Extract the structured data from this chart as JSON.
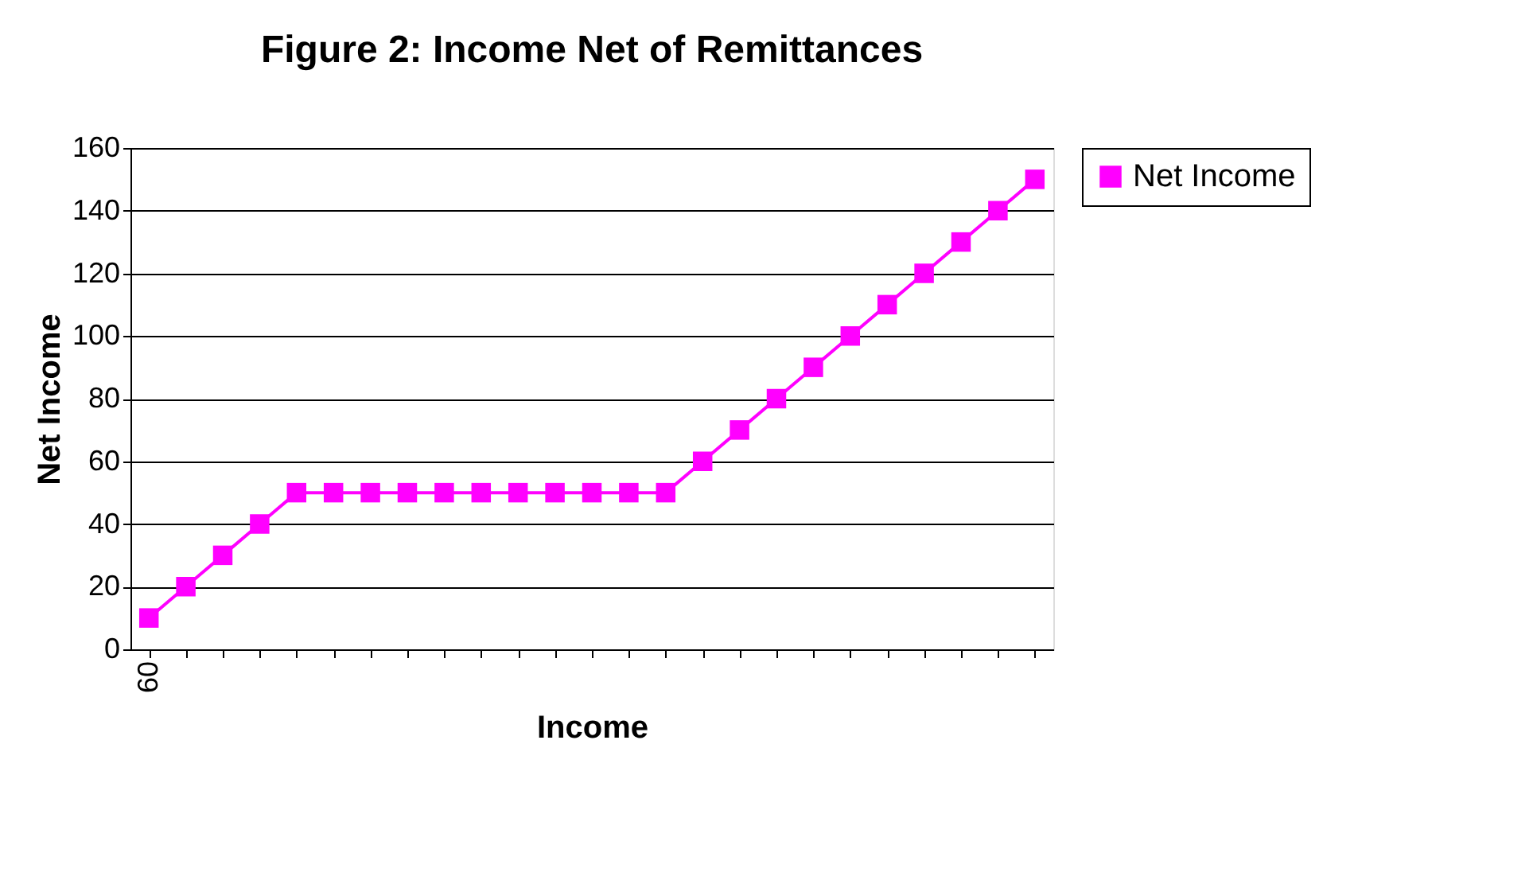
{
  "chart_data": {
    "type": "line",
    "title": "Figure 2: Income Net of Remittances",
    "xlabel": "Income",
    "ylabel": "Net Income",
    "categories": [
      "60",
      null,
      null,
      null,
      null,
      null,
      null,
      null,
      null,
      null,
      null,
      null,
      null,
      null,
      null,
      null,
      null,
      null,
      null,
      null,
      null,
      null,
      null,
      null,
      null
    ],
    "series": [
      {
        "name": "Net Income",
        "color": "#ff00ff",
        "values": [
          10,
          20,
          30,
          40,
          50,
          50,
          50,
          50,
          50,
          50,
          50,
          50,
          50,
          50,
          50,
          60,
          70,
          80,
          90,
          100,
          110,
          120,
          130,
          140,
          150
        ]
      }
    ],
    "ylim": [
      0,
      160
    ],
    "yticks": [
      0,
      20,
      40,
      60,
      80,
      100,
      120,
      140,
      160
    ],
    "grid": "y",
    "legend": "right",
    "marker": "square",
    "line_style": "solid"
  }
}
